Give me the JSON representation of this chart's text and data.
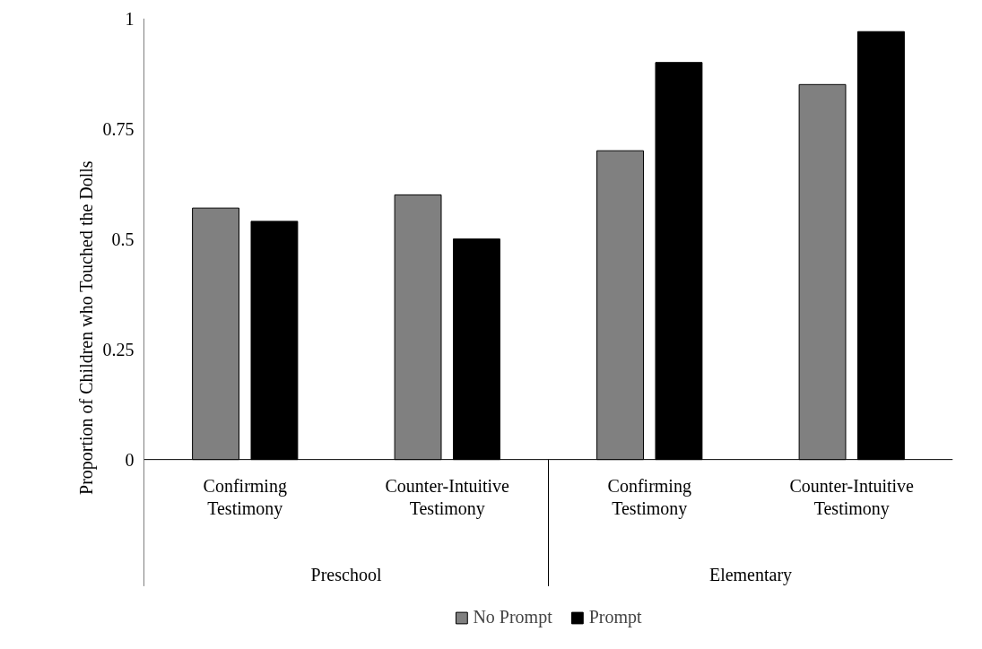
{
  "chart_data": {
    "type": "bar",
    "ylabel": "Proportion of Children who Touched the Dolls",
    "categories": [
      "Confirming Testimony",
      "Counter-Intuitive Testimony",
      "Confirming Testimony",
      "Counter-Intuitive Testimony"
    ],
    "series": [
      {
        "name": "No Prompt",
        "color": "#808080",
        "values": [
          0.57,
          0.6,
          0.7,
          0.85
        ]
      },
      {
        "name": "Prompt",
        "color": "#000000",
        "values": [
          0.54,
          0.5,
          0.9,
          0.97
        ]
      }
    ],
    "annotations": [
      "Preschool",
      "Elementary"
    ],
    "ylim": [
      0,
      1
    ],
    "yticks": [
      0,
      0.25,
      0.5,
      0.75,
      1
    ],
    "grid": false,
    "legend": "bottom"
  }
}
